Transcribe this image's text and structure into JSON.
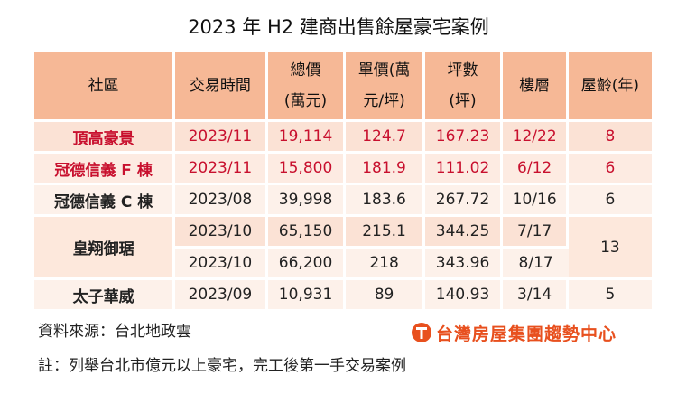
{
  "title": "2023 年 H2 建商出售餘屋豪宅案例",
  "table": {
    "header": [
      [
        "社區"
      ],
      [
        "交易時間"
      ],
      [
        "總價",
        "(萬元)"
      ],
      [
        "單價(萬",
        "元/坪)"
      ],
      [
        "坪數",
        "(坪)"
      ],
      [
        "樓層"
      ],
      [
        "屋齡(年)"
      ]
    ],
    "rows": [
      [
        "頂高豪景",
        "2023/11",
        "19,114",
        "124.7",
        "167.23",
        "12/22",
        "8"
      ],
      [
        "冠德信義 F 棟",
        "2023/11",
        "15,800",
        "181.9",
        "111.02",
        "6/12",
        "6"
      ],
      [
        "冠德信義 C 棟",
        "2023/08",
        "39,998",
        "183.6",
        "267.72",
        "10/16",
        "6"
      ],
      [
        "皇翔御琚",
        "2023/10",
        "65,150",
        "215.1",
        "344.25",
        "7/17",
        "13"
      ],
      [
        "2023/10",
        "66,200",
        "218",
        "343.96",
        "8/17"
      ],
      [
        "太子華威",
        "2023/09",
        "10,931",
        "89",
        "140.93",
        "3/14",
        "5"
      ]
    ]
  },
  "footer": {
    "source": "資料來源：台北地政雲",
    "note": "註：列舉台北市億元以上豪宅，完工後第一手交易案例",
    "logo": "台灣房屋集團趨勢中心"
  }
}
